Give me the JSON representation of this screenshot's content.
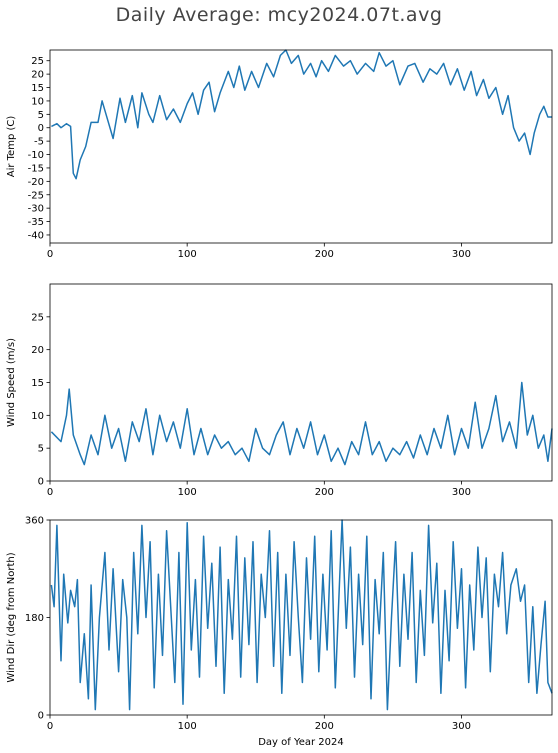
{
  "title": "Daily Average: mcy2024.07t.avg",
  "colors": {
    "line": "#1f77b4",
    "axis": "#000000"
  },
  "chart_data": [
    {
      "type": "line",
      "ylabel": "Air Temp (C)",
      "xlabel": "",
      "xlim": [
        0,
        366
      ],
      "ylim": [
        -43,
        29
      ],
      "xticks": [
        0,
        100,
        200,
        300
      ],
      "yticks": [
        25,
        20,
        15,
        10,
        5,
        0,
        -5,
        -10,
        -15,
        -20,
        -25,
        -30,
        -35,
        -40
      ],
      "keypoints": [
        [
          1,
          0.5
        ],
        [
          5,
          1.5
        ],
        [
          8,
          0
        ],
        [
          12,
          1.5
        ],
        [
          15,
          0.5
        ],
        [
          17,
          -17
        ],
        [
          19,
          -19
        ],
        [
          22,
          -12
        ],
        [
          26,
          -7
        ],
        [
          30,
          2
        ],
        [
          35,
          2
        ],
        [
          38,
          10
        ],
        [
          42,
          3
        ],
        [
          46,
          -4
        ],
        [
          51,
          11
        ],
        [
          55,
          2
        ],
        [
          60,
          12
        ],
        [
          64,
          0
        ],
        [
          67,
          13
        ],
        [
          72,
          5
        ],
        [
          75,
          2
        ],
        [
          80,
          12
        ],
        [
          85,
          3
        ],
        [
          90,
          7
        ],
        [
          95,
          2
        ],
        [
          100,
          9
        ],
        [
          104,
          13
        ],
        [
          108,
          5
        ],
        [
          112,
          14
        ],
        [
          116,
          17
        ],
        [
          120,
          6
        ],
        [
          124,
          13
        ],
        [
          130,
          21
        ],
        [
          134,
          15
        ],
        [
          138,
          23
        ],
        [
          142,
          14
        ],
        [
          147,
          21
        ],
        [
          152,
          15
        ],
        [
          158,
          24
        ],
        [
          163,
          19
        ],
        [
          168,
          27
        ],
        [
          172,
          29
        ],
        [
          176,
          24
        ],
        [
          181,
          27
        ],
        [
          185,
          20
        ],
        [
          190,
          24
        ],
        [
          194,
          19
        ],
        [
          198,
          25
        ],
        [
          203,
          21
        ],
        [
          208,
          27
        ],
        [
          214,
          23
        ],
        [
          219,
          25
        ],
        [
          224,
          20
        ],
        [
          230,
          24
        ],
        [
          236,
          21
        ],
        [
          240,
          28
        ],
        [
          245,
          23
        ],
        [
          250,
          25
        ],
        [
          255,
          16
        ],
        [
          261,
          23
        ],
        [
          266,
          24
        ],
        [
          272,
          17
        ],
        [
          277,
          22
        ],
        [
          282,
          20
        ],
        [
          287,
          24
        ],
        [
          292,
          16
        ],
        [
          297,
          22
        ],
        [
          302,
          14
        ],
        [
          307,
          21
        ],
        [
          311,
          12
        ],
        [
          316,
          18
        ],
        [
          320,
          11
        ],
        [
          325,
          15
        ],
        [
          330,
          5
        ],
        [
          334,
          12
        ],
        [
          338,
          0
        ],
        [
          342,
          -5
        ],
        [
          346,
          -2
        ],
        [
          350,
          -10
        ],
        [
          353,
          -2
        ],
        [
          357,
          5
        ],
        [
          360,
          8
        ],
        [
          363,
          4
        ],
        [
          366,
          4
        ]
      ]
    },
    {
      "type": "line",
      "ylabel": "Wind Speed (m/s)",
      "xlabel": "",
      "xlim": [
        0,
        366
      ],
      "ylim": [
        0,
        30
      ],
      "xticks": [
        0,
        100,
        200,
        300
      ],
      "yticks": [
        0,
        5,
        10,
        15,
        20,
        25
      ],
      "keypoints": [
        [
          1,
          7.5
        ],
        [
          8,
          6
        ],
        [
          12,
          10
        ],
        [
          14,
          14
        ],
        [
          17,
          7
        ],
        [
          22,
          4
        ],
        [
          25,
          2.5
        ],
        [
          30,
          7
        ],
        [
          35,
          4
        ],
        [
          40,
          10
        ],
        [
          45,
          5
        ],
        [
          50,
          8
        ],
        [
          55,
          3
        ],
        [
          60,
          9
        ],
        [
          65,
          6
        ],
        [
          70,
          11
        ],
        [
          75,
          4
        ],
        [
          80,
          10
        ],
        [
          85,
          6
        ],
        [
          90,
          9
        ],
        [
          95,
          5
        ],
        [
          100,
          11
        ],
        [
          105,
          4
        ],
        [
          110,
          8
        ],
        [
          115,
          4
        ],
        [
          120,
          7
        ],
        [
          125,
          5
        ],
        [
          130,
          6
        ],
        [
          135,
          4
        ],
        [
          140,
          5
        ],
        [
          145,
          3
        ],
        [
          150,
          8
        ],
        [
          155,
          5
        ],
        [
          160,
          4
        ],
        [
          165,
          7
        ],
        [
          170,
          9
        ],
        [
          175,
          4
        ],
        [
          180,
          8
        ],
        [
          185,
          5
        ],
        [
          190,
          9
        ],
        [
          195,
          4
        ],
        [
          200,
          7
        ],
        [
          205,
          3
        ],
        [
          210,
          5
        ],
        [
          215,
          2.5
        ],
        [
          220,
          6
        ],
        [
          225,
          4
        ],
        [
          230,
          9
        ],
        [
          235,
          4
        ],
        [
          240,
          6
        ],
        [
          245,
          3
        ],
        [
          250,
          5
        ],
        [
          255,
          4
        ],
        [
          260,
          6
        ],
        [
          265,
          3.5
        ],
        [
          270,
          7
        ],
        [
          275,
          4
        ],
        [
          280,
          8
        ],
        [
          285,
          5
        ],
        [
          290,
          10
        ],
        [
          295,
          4
        ],
        [
          300,
          8
        ],
        [
          305,
          5
        ],
        [
          310,
          12
        ],
        [
          315,
          5
        ],
        [
          320,
          8
        ],
        [
          325,
          13
        ],
        [
          330,
          6
        ],
        [
          335,
          9
        ],
        [
          340,
          5
        ],
        [
          344,
          15
        ],
        [
          348,
          7
        ],
        [
          352,
          10
        ],
        [
          356,
          5
        ],
        [
          360,
          7
        ],
        [
          363,
          3
        ],
        [
          366,
          8
        ]
      ]
    },
    {
      "type": "line",
      "ylabel": "Wind Dir (deg from North)",
      "xlabel": "Day of Year 2024",
      "xlim": [
        0,
        366
      ],
      "ylim": [
        0,
        360
      ],
      "xticks": [
        0,
        100,
        200,
        300
      ],
      "yticks": [
        0,
        180,
        360
      ],
      "keypoints": [
        [
          1,
          240
        ],
        [
          3,
          200
        ],
        [
          5,
          350
        ],
        [
          8,
          100
        ],
        [
          10,
          260
        ],
        [
          13,
          170
        ],
        [
          15,
          230
        ],
        [
          18,
          200
        ],
        [
          20,
          250
        ],
        [
          22,
          60
        ],
        [
          25,
          150
        ],
        [
          28,
          30
        ],
        [
          30,
          240
        ],
        [
          33,
          10
        ],
        [
          36,
          180
        ],
        [
          40,
          300
        ],
        [
          43,
          120
        ],
        [
          46,
          270
        ],
        [
          50,
          80
        ],
        [
          53,
          250
        ],
        [
          56,
          180
        ],
        [
          58,
          10
        ],
        [
          61,
          300
        ],
        [
          64,
          150
        ],
        [
          67,
          350
        ],
        [
          70,
          180
        ],
        [
          73,
          320
        ],
        [
          76,
          50
        ],
        [
          79,
          260
        ],
        [
          82,
          110
        ],
        [
          85,
          340
        ],
        [
          88,
          200
        ],
        [
          91,
          60
        ],
        [
          94,
          300
        ],
        [
          97,
          20
        ],
        [
          100,
          355
        ],
        [
          103,
          120
        ],
        [
          106,
          250
        ],
        [
          109,
          70
        ],
        [
          112,
          330
        ],
        [
          115,
          160
        ],
        [
          118,
          280
        ],
        [
          121,
          90
        ],
        [
          124,
          310
        ],
        [
          127,
          40
        ],
        [
          130,
          250
        ],
        [
          133,
          140
        ],
        [
          136,
          330
        ],
        [
          139,
          70
        ],
        [
          142,
          290
        ],
        [
          145,
          130
        ],
        [
          148,
          320
        ],
        [
          151,
          60
        ],
        [
          154,
          260
        ],
        [
          157,
          180
        ],
        [
          160,
          340
        ],
        [
          163,
          90
        ],
        [
          166,
          300
        ],
        [
          169,
          40
        ],
        [
          172,
          260
        ],
        [
          175,
          110
        ],
        [
          178,
          320
        ],
        [
          181,
          180
        ],
        [
          184,
          60
        ],
        [
          187,
          290
        ],
        [
          190,
          140
        ],
        [
          193,
          330
        ],
        [
          196,
          80
        ],
        [
          199,
          260
        ],
        [
          202,
          120
        ],
        [
          205,
          340
        ],
        [
          208,
          50
        ],
        [
          211,
          240
        ],
        [
          213,
          360
        ],
        [
          216,
          160
        ],
        [
          219,
          310
        ],
        [
          222,
          70
        ],
        [
          225,
          260
        ],
        [
          228,
          130
        ],
        [
          231,
          330
        ],
        [
          234,
          30
        ],
        [
          237,
          250
        ],
        [
          240,
          150
        ],
        [
          243,
          300
        ],
        [
          246,
          10
        ],
        [
          249,
          180
        ],
        [
          252,
          320
        ],
        [
          255,
          90
        ],
        [
          258,
          260
        ],
        [
          261,
          140
        ],
        [
          264,
          300
        ],
        [
          267,
          60
        ],
        [
          270,
          230
        ],
        [
          273,
          110
        ],
        [
          276,
          350
        ],
        [
          279,
          170
        ],
        [
          282,
          280
        ],
        [
          285,
          40
        ],
        [
          288,
          230
        ],
        [
          291,
          100
        ],
        [
          294,
          320
        ],
        [
          297,
          160
        ],
        [
          300,
          270
        ],
        [
          303,
          50
        ],
        [
          306,
          240
        ],
        [
          309,
          120
        ],
        [
          312,
          310
        ],
        [
          315,
          180
        ],
        [
          318,
          290
        ],
        [
          321,
          80
        ],
        [
          324,
          260
        ],
        [
          327,
          200
        ],
        [
          330,
          300
        ],
        [
          333,
          150
        ],
        [
          336,
          240
        ],
        [
          340,
          270
        ],
        [
          343,
          210
        ],
        [
          346,
          240
        ],
        [
          349,
          60
        ],
        [
          352,
          200
        ],
        [
          355,
          40
        ],
        [
          358,
          130
        ],
        [
          361,
          210
        ],
        [
          363,
          60
        ],
        [
          366,
          40
        ]
      ]
    }
  ]
}
